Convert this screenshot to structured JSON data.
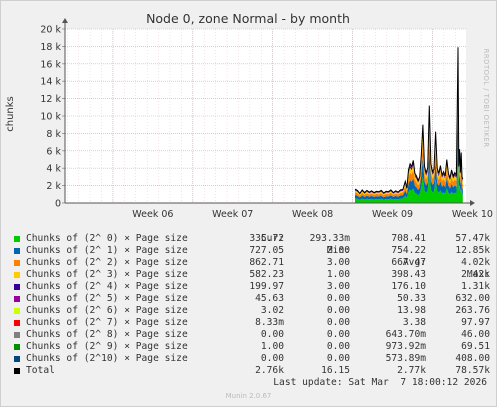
{
  "chart_data": {
    "type": "area",
    "title": "Node 0, zone Normal - by month",
    "ylabel": "chunks",
    "ylim": [
      0,
      20000
    ],
    "yticks": [
      {
        "value": 0,
        "label": "0"
      },
      {
        "value": 2000,
        "label": "2 k"
      },
      {
        "value": 4000,
        "label": "4 k"
      },
      {
        "value": 6000,
        "label": "6 k"
      },
      {
        "value": 8000,
        "label": "8 k"
      },
      {
        "value": 10000,
        "label": "10 k"
      },
      {
        "value": 12000,
        "label": "12 k"
      },
      {
        "value": 14000,
        "label": "14 k"
      },
      {
        "value": 16000,
        "label": "16 k"
      },
      {
        "value": 18000,
        "label": "18 k"
      },
      {
        "value": 20000,
        "label": "20 k"
      }
    ],
    "xticks": [
      "Week 06",
      "Week 07",
      "Week 08",
      "Week 09",
      "Week 10"
    ],
    "xrange_weeks": [
      5.4,
      10.42
    ],
    "grid": true,
    "stacked": true,
    "series": [
      {
        "name": "Chunks of (2^ 0) × Page size",
        "color": "#00cc00",
        "cur": "335.72",
        "min": "293.33m",
        "avg": "708.41",
        "max": "57.47k"
      },
      {
        "name": "Chunks of (2^ 1) × Page size",
        "color": "#0066b3",
        "cur": "727.05",
        "min": "2.00",
        "avg": "754.22",
        "max": "12.85k"
      },
      {
        "name": "Chunks of (2^ 2) × Page size",
        "color": "#ff8000",
        "cur": "862.71",
        "min": "3.00",
        "avg": "667.47",
        "max": "4.02k"
      },
      {
        "name": "Chunks of (2^ 3) × Page size",
        "color": "#ffcc00",
        "cur": "582.23",
        "min": "1.00",
        "avg": "398.43",
        "max": "2.42k"
      },
      {
        "name": "Chunks of (2^ 4) × Page size",
        "color": "#330099",
        "cur": "199.97",
        "min": "3.00",
        "avg": "176.10",
        "max": "1.31k"
      },
      {
        "name": "Chunks of (2^ 5) × Page size",
        "color": "#990099",
        "cur": "45.63",
        "min": "0.00",
        "avg": "50.33",
        "max": "632.00"
      },
      {
        "name": "Chunks of (2^ 6) × Page size",
        "color": "#ccff00",
        "cur": "3.02",
        "min": "0.00",
        "avg": "13.98",
        "max": "263.76"
      },
      {
        "name": "Chunks of (2^ 7) × Page size",
        "color": "#ff0000",
        "cur": "8.33m",
        "min": "0.00",
        "avg": "3.38",
        "max": "97.97"
      },
      {
        "name": "Chunks of (2^ 8) × Page size",
        "color": "#808080",
        "cur": "0.00",
        "min": "0.00",
        "avg": "643.70m",
        "max": "46.00"
      },
      {
        "name": "Chunks of (2^ 9) × Page size",
        "color": "#008f00",
        "cur": "1.00",
        "min": "0.00",
        "avg": "973.92m",
        "max": "69.51"
      },
      {
        "name": "Chunks of (2^10) × Page size",
        "color": "#00487d",
        "cur": "0.00",
        "min": "0.00",
        "avg": "573.89m",
        "max": "408.00"
      }
    ],
    "total": {
      "name": "Total",
      "color": "#000000",
      "cur": "2.76k",
      "min": "16.15",
      "avg": "2.77k",
      "max": "78.57k"
    },
    "stack_shares": [
      0.34,
      0.24,
      0.2,
      0.12,
      0.05,
      0.02,
      0.01,
      0.005,
      0.005,
      0.005,
      0.005
    ],
    "total_points": [
      {
        "x": 9.03,
        "y": 1600
      },
      {
        "x": 9.06,
        "y": 1450
      },
      {
        "x": 9.09,
        "y": 1100
      },
      {
        "x": 9.12,
        "y": 1500
      },
      {
        "x": 9.15,
        "y": 1200
      },
      {
        "x": 9.18,
        "y": 1450
      },
      {
        "x": 9.21,
        "y": 1250
      },
      {
        "x": 9.24,
        "y": 1400
      },
      {
        "x": 9.27,
        "y": 1200
      },
      {
        "x": 9.3,
        "y": 1350
      },
      {
        "x": 9.33,
        "y": 1300
      },
      {
        "x": 9.36,
        "y": 1450
      },
      {
        "x": 9.39,
        "y": 1150
      },
      {
        "x": 9.42,
        "y": 1350
      },
      {
        "x": 9.45,
        "y": 1300
      },
      {
        "x": 9.48,
        "y": 1500
      },
      {
        "x": 9.51,
        "y": 1200
      },
      {
        "x": 9.54,
        "y": 1400
      },
      {
        "x": 9.57,
        "y": 1250
      },
      {
        "x": 9.6,
        "y": 1500
      },
      {
        "x": 9.63,
        "y": 1550
      },
      {
        "x": 9.66,
        "y": 2500
      },
      {
        "x": 9.68,
        "y": 1700
      },
      {
        "x": 9.7,
        "y": 3800
      },
      {
        "x": 9.72,
        "y": 4500
      },
      {
        "x": 9.74,
        "y": 4200
      },
      {
        "x": 9.76,
        "y": 4900
      },
      {
        "x": 9.78,
        "y": 3400
      },
      {
        "x": 9.8,
        "y": 3100
      },
      {
        "x": 9.82,
        "y": 2600
      },
      {
        "x": 9.84,
        "y": 3000
      },
      {
        "x": 9.86,
        "y": 5500
      },
      {
        "x": 9.88,
        "y": 9000
      },
      {
        "x": 9.9,
        "y": 4200
      },
      {
        "x": 9.92,
        "y": 3500
      },
      {
        "x": 9.94,
        "y": 4000
      },
      {
        "x": 9.96,
        "y": 11200
      },
      {
        "x": 9.98,
        "y": 4500
      },
      {
        "x": 10.0,
        "y": 3600
      },
      {
        "x": 10.02,
        "y": 3900
      },
      {
        "x": 10.04,
        "y": 8200
      },
      {
        "x": 10.06,
        "y": 4000
      },
      {
        "x": 10.08,
        "y": 3400
      },
      {
        "x": 10.1,
        "y": 4300
      },
      {
        "x": 10.12,
        "y": 3200
      },
      {
        "x": 10.14,
        "y": 3600
      },
      {
        "x": 10.16,
        "y": 3100
      },
      {
        "x": 10.18,
        "y": 5000
      },
      {
        "x": 10.2,
        "y": 3400
      },
      {
        "x": 10.22,
        "y": 2900
      },
      {
        "x": 10.24,
        "y": 3800
      },
      {
        "x": 10.26,
        "y": 3100
      },
      {
        "x": 10.28,
        "y": 3500
      },
      {
        "x": 10.3,
        "y": 3200
      },
      {
        "x": 10.32,
        "y": 17900
      },
      {
        "x": 10.33,
        "y": 4200
      },
      {
        "x": 10.34,
        "y": 6200
      },
      {
        "x": 10.35,
        "y": 3500
      },
      {
        "x": 10.36,
        "y": 5800
      },
      {
        "x": 10.37,
        "y": 3000
      },
      {
        "x": 10.38,
        "y": 2760
      }
    ]
  },
  "legend": {
    "col_cur": "Cur:",
    "col_min": "Min:",
    "col_avg": "Avg:",
    "col_max": "Max:"
  },
  "last_update": "Last update: Sat Mar  7 18:00:12 2026",
  "side_label": "RRDTOOL / TOBI OETIKER",
  "footer": "Munin 2.0.67"
}
